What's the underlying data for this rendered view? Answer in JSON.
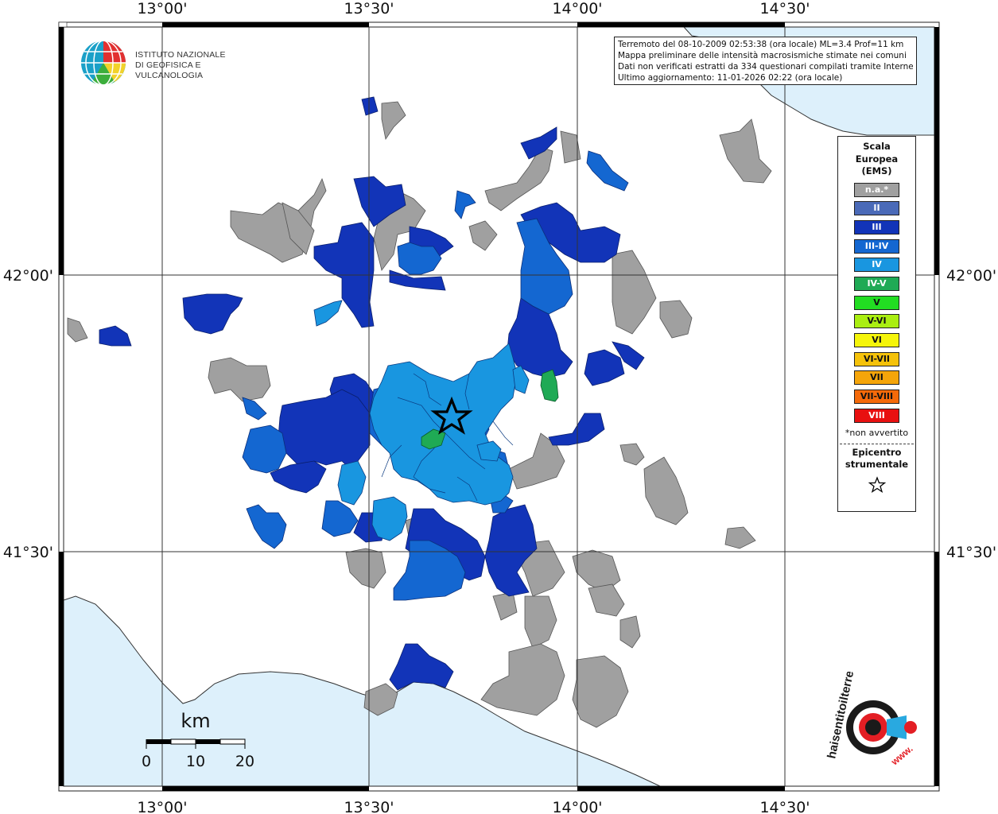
{
  "map": {
    "lon_labels": [
      "13°00'",
      "13°30'",
      "14°00'",
      "14°30'"
    ],
    "lat_labels": [
      "42°00'",
      "41°30'"
    ],
    "epicenter_icon": "star-icon"
  },
  "scale_bar": {
    "unit": "km",
    "ticks": [
      "0",
      "10",
      "20"
    ]
  },
  "info": {
    "line1": "Terremoto del 08-10-2009 02:53:38 (ora locale) ML=3.4 Prof=11 km",
    "line2": "Mappa preliminare delle intensità macrosismiche stimate nei comuni",
    "line3": "Dati non verificati estratti da 334 questionari compilati tramite Internet.",
    "line4": "Ultimo aggiornamento: 11-01-2026 02:22 (ora locale)"
  },
  "logo": {
    "line1": "ISTITUTO NAZIONALE",
    "line2": "DI GEOFISICA E VULCANOLOGIA",
    "hsit_text": "haisentitoilterremoto.it",
    "hsit_www": "www."
  },
  "legend": {
    "title_line1": "Scala",
    "title_line2": "Europea",
    "title_line3": "(EMS)",
    "items": [
      {
        "label": "n.a.*",
        "color": "#a0a0a0"
      },
      {
        "label": "II",
        "color": "#4a6ab8"
      },
      {
        "label": "III",
        "color": "#1234b8"
      },
      {
        "label": "III-IV",
        "color": "#1467d1"
      },
      {
        "label": "IV",
        "color": "#1996e0"
      },
      {
        "label": "IV-V",
        "color": "#1faa55"
      },
      {
        "label": "V",
        "color": "#22dd22"
      },
      {
        "label": "V-VI",
        "color": "#aaee11"
      },
      {
        "label": "VI",
        "color": "#f5f50a"
      },
      {
        "label": "VI-VII",
        "color": "#f5c20a"
      },
      {
        "label": "VII",
        "color": "#f5a50a"
      },
      {
        "label": "VII-VIII",
        "color": "#f56a0a"
      },
      {
        "label": "VIII",
        "color": "#e81010"
      }
    ],
    "note": "*non avvertito",
    "epi_line1": "Epicentro",
    "epi_line2": "strumentale"
  },
  "colors": {
    "sea": "#ddf0fb",
    "na": "#a0a0a0",
    "ii": "#4a6ab8",
    "iii": "#1234b8",
    "iii_iv": "#1467d1",
    "iv": "#1996e0",
    "iv_v": "#1faa55"
  }
}
